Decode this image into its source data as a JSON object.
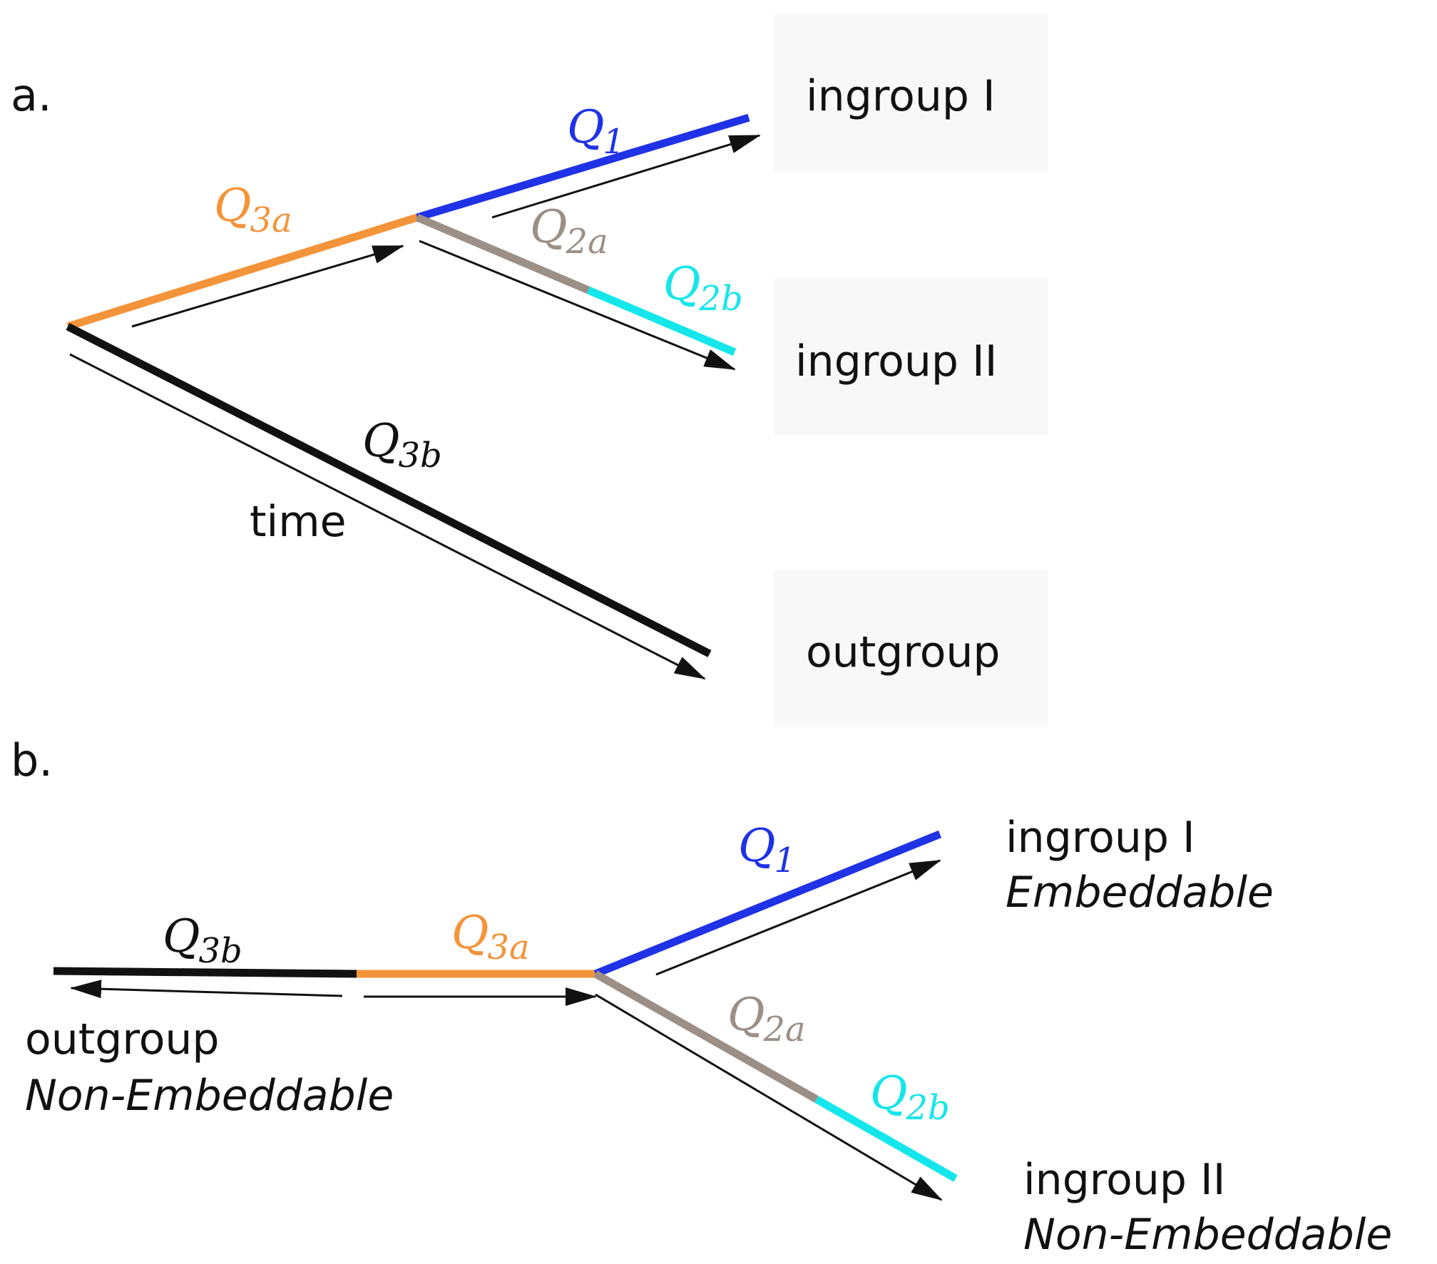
{
  "panel_a": {
    "label": "a.",
    "taxa": {
      "ingroup1": "ingroup I",
      "ingroup2": "ingroup II",
      "outgroup": "outgroup"
    },
    "time_label": "time",
    "branches": {
      "q3a": {
        "main": "Q",
        "sub": "3a"
      },
      "q1": {
        "main": "Q",
        "sub": "1"
      },
      "q2a": {
        "main": "Q",
        "sub": "2a"
      },
      "q2b": {
        "main": "Q",
        "sub": "2b"
      },
      "q3b": {
        "main": "Q",
        "sub": "3b"
      }
    }
  },
  "panel_b": {
    "label": "b.",
    "taxa": {
      "ingroup1": "ingroup I",
      "ingroup1_status": "Embeddable",
      "ingroup2": "ingroup II",
      "ingroup2_status": "Non-Embeddable",
      "outgroup": "outgroup",
      "outgroup_status": "Non-Embeddable"
    },
    "branches": {
      "q3b": {
        "main": "Q",
        "sub": "3b"
      },
      "q3a": {
        "main": "Q",
        "sub": "3a"
      },
      "q1": {
        "main": "Q",
        "sub": "1"
      },
      "q2a": {
        "main": "Q",
        "sub": "2a"
      },
      "q2b": {
        "main": "Q",
        "sub": "2b"
      }
    }
  },
  "colors": {
    "q1": "#1f32e6",
    "q2a": "#9b8f86",
    "q2b": "#14e6ec",
    "q3a": "#f4943a",
    "q3b": "#111111",
    "arrow": "#111111"
  }
}
